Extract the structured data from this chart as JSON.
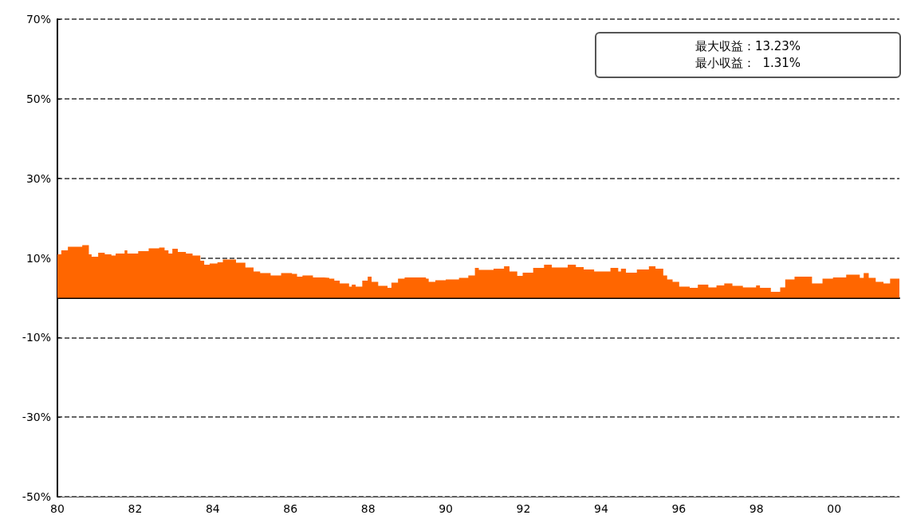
{
  "chart_data": {
    "type": "area",
    "color": "#ff6600",
    "grid": "y",
    "line_style": "dashed",
    "annotations": [
      "最大収益：13.23%",
      "最小収益：  1.31%"
    ],
    "xlim": [
      1980,
      2001.68
    ],
    "xticks": [
      {
        "value": 1980,
        "label": "80"
      },
      {
        "value": 1981,
        "label": null
      },
      {
        "value": 1982,
        "label": "82"
      },
      {
        "value": 1983,
        "label": null
      },
      {
        "value": 1984,
        "label": "84"
      },
      {
        "value": 1985,
        "label": null
      },
      {
        "value": 1986,
        "label": "86"
      },
      {
        "value": 1987,
        "label": null
      },
      {
        "value": 1988,
        "label": "88"
      },
      {
        "value": 1989,
        "label": null
      },
      {
        "value": 1990,
        "label": "90"
      },
      {
        "value": 1991,
        "label": null
      },
      {
        "value": 1992,
        "label": "92"
      },
      {
        "value": 1993,
        "label": null
      },
      {
        "value": 1994,
        "label": "94"
      },
      {
        "value": 1995,
        "label": null
      },
      {
        "value": 1996,
        "label": "96"
      },
      {
        "value": 1997,
        "label": null
      },
      {
        "value": 1998,
        "label": "98"
      },
      {
        "value": 1999,
        "label": null
      },
      {
        "value": 2000,
        "label": "00"
      },
      {
        "value": 2001,
        "label": null
      }
    ],
    "ylim": [
      -50,
      70
    ],
    "yticks": [
      {
        "value": -50,
        "label": "-50%"
      },
      {
        "value": -30,
        "label": "-30%"
      },
      {
        "value": -10,
        "label": "-10%"
      },
      {
        "value": 10,
        "label": "10%"
      },
      {
        "value": 30,
        "label": "30%"
      },
      {
        "value": 50,
        "label": "50%"
      },
      {
        "value": 70,
        "label": "70%"
      }
    ],
    "x": [
      1980.0,
      1980.1,
      1980.27,
      1980.64,
      1980.81,
      1980.88,
      1981.05,
      1981.22,
      1981.39,
      1981.5,
      1981.73,
      1981.8,
      1982.08,
      1982.35,
      1982.62,
      1982.76,
      1982.86,
      1982.96,
      1983.1,
      1983.31,
      1983.48,
      1983.68,
      1983.78,
      1983.92,
      1984.12,
      1984.26,
      1984.6,
      1984.84,
      1985.05,
      1985.22,
      1985.49,
      1985.76,
      1986.04,
      1986.17,
      1986.31,
      1986.58,
      1986.86,
      1987.0,
      1987.13,
      1987.27,
      1987.51,
      1987.58,
      1987.68,
      1987.85,
      1987.99,
      1988.09,
      1988.26,
      1988.5,
      1988.6,
      1988.77,
      1988.94,
      1989.49,
      1989.56,
      1989.73,
      1990.0,
      1990.34,
      1990.58,
      1990.75,
      1990.85,
      1991.23,
      1991.5,
      1991.64,
      1991.84,
      1991.98,
      1992.25,
      1992.53,
      1992.73,
      1993.14,
      1993.35,
      1993.55,
      1993.82,
      1994.24,
      1994.44,
      1994.51,
      1994.64,
      1994.92,
      1995.23,
      1995.4,
      1995.6,
      1995.7,
      1995.84,
      1996.01,
      1996.28,
      1996.49,
      1996.76,
      1996.97,
      1997.17,
      1997.38,
      1997.65,
      1997.99,
      1998.09,
      1998.37,
      1998.61,
      1998.74,
      1998.98,
      1999.43,
      1999.7,
      1999.97,
      2000.31,
      2000.66,
      2000.76,
      2000.89,
      2001.07,
      2001.27,
      2001.44,
      2001.68
    ],
    "values": [
      10.9,
      11.9,
      12.8,
      13.2,
      10.9,
      10.3,
      11.3,
      10.9,
      10.6,
      11.1,
      11.9,
      11.1,
      11.7,
      12.4,
      12.6,
      11.9,
      11.1,
      12.3,
      11.5,
      11.1,
      10.6,
      9.3,
      8.3,
      8.6,
      8.9,
      9.6,
      8.8,
      7.6,
      6.6,
      6.2,
      5.6,
      6.2,
      6.0,
      5.3,
      5.6,
      5.1,
      5.0,
      4.8,
      4.3,
      3.6,
      2.8,
      3.3,
      2.8,
      4.3,
      5.3,
      4.0,
      3.0,
      2.5,
      3.8,
      4.8,
      5.1,
      4.8,
      4.0,
      4.4,
      4.6,
      5.0,
      5.6,
      7.5,
      7.0,
      7.3,
      7.9,
      6.6,
      5.5,
      6.3,
      7.5,
      8.3,
      7.6,
      8.3,
      7.7,
      7.1,
      6.6,
      7.5,
      6.6,
      7.3,
      6.3,
      7.1,
      7.9,
      7.3,
      5.6,
      4.6,
      4.0,
      2.8,
      2.5,
      3.3,
      2.6,
      3.1,
      3.6,
      3.0,
      2.6,
      3.1,
      2.5,
      1.5,
      2.6,
      4.6,
      5.3,
      3.6,
      4.8,
      5.1,
      5.8,
      5.0,
      6.2,
      5.0,
      4.0,
      3.6,
      4.8,
      4.8
    ]
  }
}
